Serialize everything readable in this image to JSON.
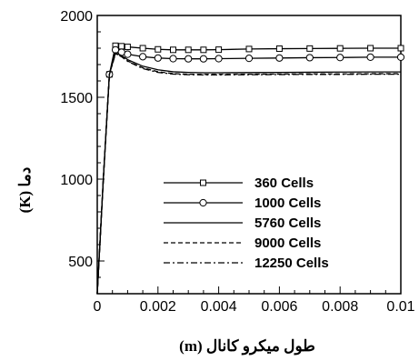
{
  "chart_data": {
    "type": "line",
    "title": "",
    "xlabel": "طول میکرو کانال (m)",
    "ylabel": "دما (K)",
    "xlim": [
      0,
      0.01
    ],
    "ylim": [
      300,
      2000
    ],
    "xticks": [
      0,
      0.002,
      0.004,
      0.006,
      0.008,
      0.01
    ],
    "xtick_labels": [
      "0",
      "0.002",
      "0.004",
      "0.006",
      "0.008",
      "0.01"
    ],
    "yticks": [
      500,
      1000,
      1500,
      2000
    ],
    "ytick_labels": [
      "500",
      "1000",
      "1500",
      "2000"
    ],
    "grid": false,
    "legend_position": "center-right",
    "series": [
      {
        "name": "360 Cells",
        "style": "solid",
        "marker": "square",
        "x": [
          0,
          0.0002,
          0.0004,
          0.0006,
          0.0008,
          0.001,
          0.0015,
          0.002,
          0.0025,
          0.003,
          0.0035,
          0.004,
          0.005,
          0.006,
          0.007,
          0.008,
          0.009,
          0.01
        ],
        "y": [
          300,
          1000,
          1640,
          1815,
          1812,
          1808,
          1800,
          1793,
          1790,
          1790,
          1790,
          1791,
          1795,
          1797,
          1798,
          1799,
          1800,
          1800
        ]
      },
      {
        "name": "1000 Cells",
        "style": "solid",
        "marker": "circle",
        "x": [
          0,
          0.0002,
          0.0004,
          0.0006,
          0.0008,
          0.001,
          0.0015,
          0.002,
          0.0025,
          0.003,
          0.0035,
          0.004,
          0.005,
          0.006,
          0.007,
          0.008,
          0.009,
          0.01
        ],
        "y": [
          300,
          1000,
          1640,
          1790,
          1775,
          1763,
          1748,
          1740,
          1736,
          1735,
          1735,
          1736,
          1738,
          1740,
          1742,
          1743,
          1745,
          1745
        ]
      },
      {
        "name": "5760 Cells",
        "style": "solid",
        "marker": "none",
        "x": [
          0,
          0.0002,
          0.0004,
          0.0006,
          0.0008,
          0.001,
          0.0015,
          0.002,
          0.0025,
          0.003,
          0.0035,
          0.004,
          0.005,
          0.006,
          0.007,
          0.008,
          0.009,
          0.01
        ],
        "y": [
          300,
          1000,
          1640,
          1772,
          1755,
          1730,
          1690,
          1668,
          1656,
          1652,
          1650,
          1650,
          1651,
          1652,
          1653,
          1654,
          1655,
          1655
        ]
      },
      {
        "name": "9000 Cells",
        "style": "dashed",
        "marker": "none",
        "x": [
          0,
          0.0002,
          0.0004,
          0.0006,
          0.0008,
          0.001,
          0.0015,
          0.002,
          0.0025,
          0.003,
          0.0035,
          0.004,
          0.005,
          0.006,
          0.007,
          0.008,
          0.009,
          0.01
        ],
        "y": [
          300,
          1000,
          1640,
          1768,
          1750,
          1722,
          1680,
          1656,
          1645,
          1641,
          1640,
          1640,
          1641,
          1642,
          1643,
          1643,
          1644,
          1644
        ]
      },
      {
        "name": "12250 Cells",
        "style": "dashdot",
        "marker": "none",
        "x": [
          0,
          0.0002,
          0.0004,
          0.0006,
          0.0008,
          0.001,
          0.0015,
          0.002,
          0.0025,
          0.003,
          0.0035,
          0.004,
          0.005,
          0.006,
          0.007,
          0.008,
          0.009,
          0.01
        ],
        "y": [
          300,
          1000,
          1640,
          1766,
          1748,
          1720,
          1676,
          1652,
          1642,
          1638,
          1637,
          1637,
          1638,
          1639,
          1640,
          1640,
          1641,
          1641
        ]
      }
    ]
  },
  "colors": {
    "line": "#000000",
    "background": "#ffffff"
  }
}
